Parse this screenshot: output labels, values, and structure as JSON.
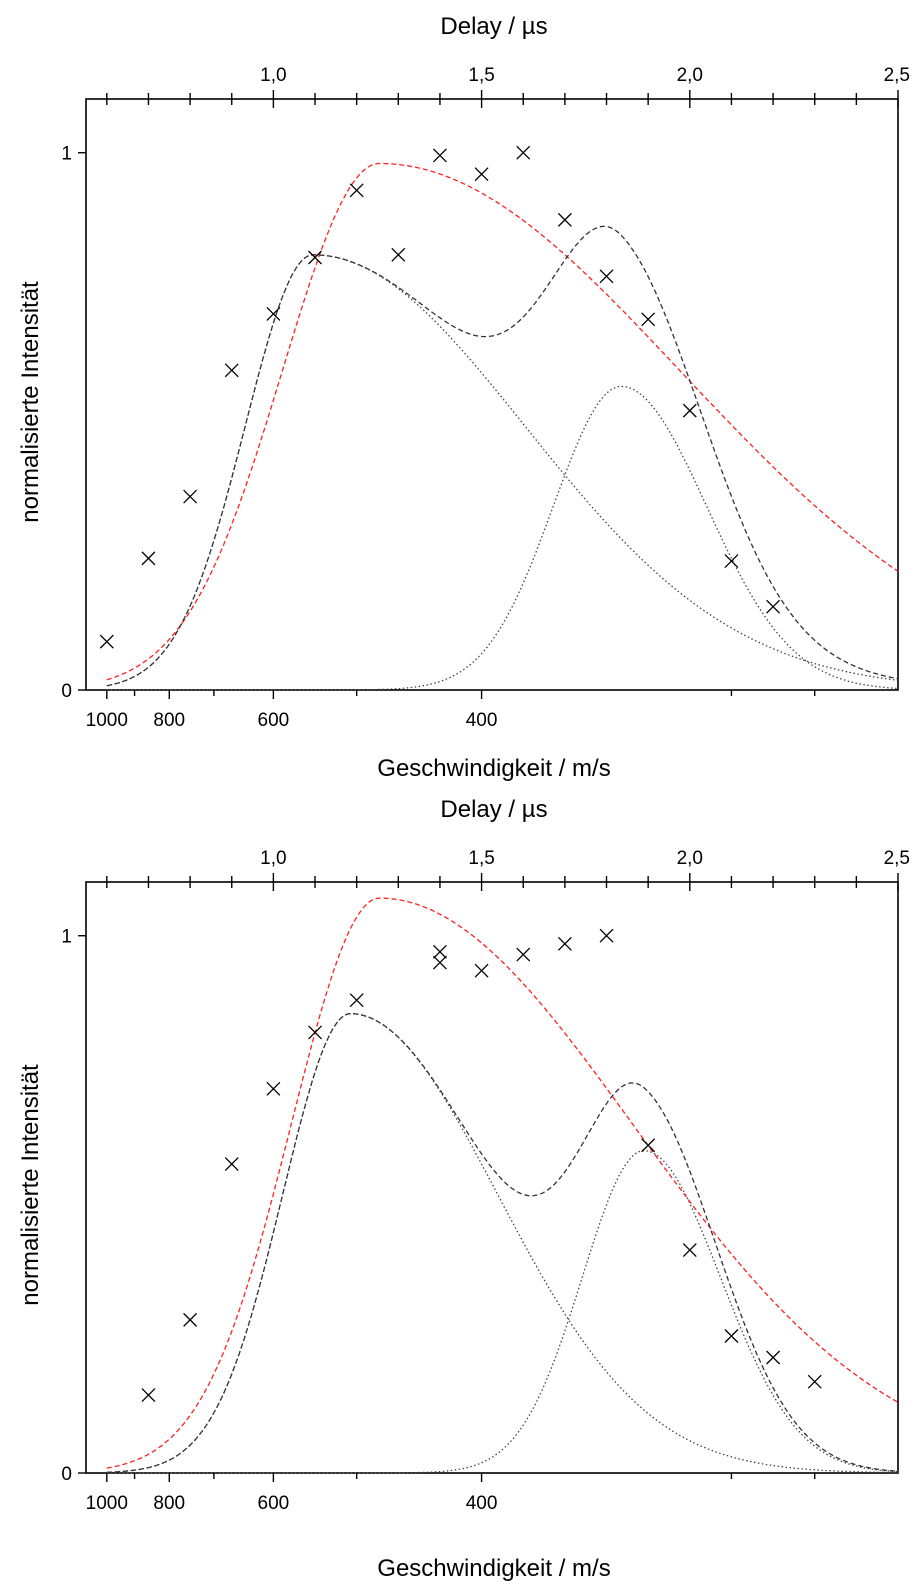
{
  "colors": {
    "axis": "#000000",
    "sum_fit": "#333333",
    "single_fit": "#ff2020",
    "components": "#444444",
    "markers": "#000000"
  },
  "chart_data": [
    {
      "type": "scatter",
      "top_axis_label": "Delay / µs",
      "xlabel": "Geschwindigkeit / m/s",
      "ylabel": "normalisierte Intensität",
      "ylim": [
        0,
        1.1
      ],
      "grid": false,
      "delay_range": [
        0.55,
        2.5
      ],
      "delay_ticks": [
        {
          "v": 1.0,
          "label": "1,0"
        },
        {
          "v": 1.5,
          "label": "1,5"
        },
        {
          "v": 2.0,
          "label": "2,0"
        },
        {
          "v": 2.5,
          "label": "2,5"
        }
      ],
      "delay_minor": [
        0.6,
        0.7,
        0.8,
        0.9,
        1.1,
        1.2,
        1.3,
        1.4,
        1.6,
        1.7,
        1.8,
        1.9,
        2.1,
        2.2,
        2.3,
        2.4
      ],
      "speed_ticks": [
        {
          "v": 1000,
          "label": "1000"
        },
        {
          "v": 800,
          "label": "800"
        },
        {
          "v": 600,
          "label": "600"
        },
        {
          "v": 400,
          "label": "400"
        }
      ],
      "speed_minor": [
        900,
        700,
        500
      ],
      "y_ticks": [
        {
          "v": 0,
          "label": "0"
        },
        {
          "v": 1,
          "label": "1"
        }
      ],
      "points": [
        {
          "x": 0.6,
          "y": 0.09
        },
        {
          "x": 0.7,
          "y": 0.245
        },
        {
          "x": 0.8,
          "y": 0.36
        },
        {
          "x": 0.9,
          "y": 0.595
        },
        {
          "x": 1.0,
          "y": 0.7
        },
        {
          "x": 1.1,
          "y": 0.805
        },
        {
          "x": 1.2,
          "y": 0.93
        },
        {
          "x": 1.3,
          "y": 0.81
        },
        {
          "x": 1.4,
          "y": 0.995
        },
        {
          "x": 1.5,
          "y": 0.96
        },
        {
          "x": 1.6,
          "y": 1.0
        },
        {
          "x": 1.7,
          "y": 0.875
        },
        {
          "x": 1.8,
          "y": 0.77
        },
        {
          "x": 1.9,
          "y": 0.69
        },
        {
          "x": 2.0,
          "y": 0.52
        },
        {
          "x": 2.1,
          "y": 0.24
        },
        {
          "x": 2.2,
          "y": 0.155
        }
      ],
      "fits": {
        "component1": {
          "amp": 0.81,
          "t0": 1.095,
          "s1": 0.23,
          "s2": 0.72
        },
        "component2": {
          "amp": 0.565,
          "t0": 1.835,
          "s1": 0.23,
          "s2": 0.29
        },
        "single": {
          "amp": 0.98,
          "t0": 1.255,
          "s1": 0.33,
          "s2": 1.02
        }
      }
    },
    {
      "type": "scatter",
      "top_axis_label": "Delay / µs",
      "xlabel": "Geschwindigkeit / m/s",
      "ylabel": "normalisierte Intensität",
      "ylim": [
        0,
        1.1
      ],
      "grid": false,
      "delay_range": [
        0.55,
        2.5
      ],
      "delay_ticks": [
        {
          "v": 1.0,
          "label": "1,0"
        },
        {
          "v": 1.5,
          "label": "1,5"
        },
        {
          "v": 2.0,
          "label": "2,0"
        },
        {
          "v": 2.5,
          "label": "2,5"
        }
      ],
      "delay_minor": [
        0.6,
        0.7,
        0.8,
        0.9,
        1.1,
        1.2,
        1.3,
        1.4,
        1.6,
        1.7,
        1.8,
        1.9,
        2.1,
        2.2,
        2.3,
        2.4
      ],
      "speed_ticks": [
        {
          "v": 1000,
          "label": "1000"
        },
        {
          "v": 800,
          "label": "800"
        },
        {
          "v": 600,
          "label": "600"
        },
        {
          "v": 400,
          "label": "400"
        }
      ],
      "speed_minor": [
        900,
        700,
        500
      ],
      "y_ticks": [
        {
          "v": 0,
          "label": "0"
        },
        {
          "v": 1,
          "label": "1"
        }
      ],
      "points": [
        {
          "x": 0.7,
          "y": 0.145
        },
        {
          "x": 0.8,
          "y": 0.285
        },
        {
          "x": 0.9,
          "y": 0.575
        },
        {
          "x": 1.0,
          "y": 0.715
        },
        {
          "x": 1.1,
          "y": 0.82
        },
        {
          "x": 1.2,
          "y": 0.88
        },
        {
          "x": 1.4,
          "y": 0.95
        },
        {
          "x": 1.4,
          "y": 0.97
        },
        {
          "x": 1.5,
          "y": 0.935
        },
        {
          "x": 1.6,
          "y": 0.965
        },
        {
          "x": 1.7,
          "y": 0.985
        },
        {
          "x": 1.8,
          "y": 1.0
        },
        {
          "x": 1.9,
          "y": 0.61
        },
        {
          "x": 2.0,
          "y": 0.415
        },
        {
          "x": 2.1,
          "y": 0.255
        },
        {
          "x": 2.2,
          "y": 0.215
        },
        {
          "x": 2.3,
          "y": 0.17
        }
      ],
      "fits": {
        "component1": {
          "amp": 0.855,
          "t0": 1.185,
          "s1": 0.23,
          "s2": 0.5
        },
        "component2": {
          "amp": 0.6,
          "t0": 1.89,
          "s1": 0.21,
          "s2": 0.26
        },
        "single": {
          "amp": 1.07,
          "t0": 1.255,
          "s1": 0.3,
          "s2": 0.86
        }
      }
    }
  ]
}
